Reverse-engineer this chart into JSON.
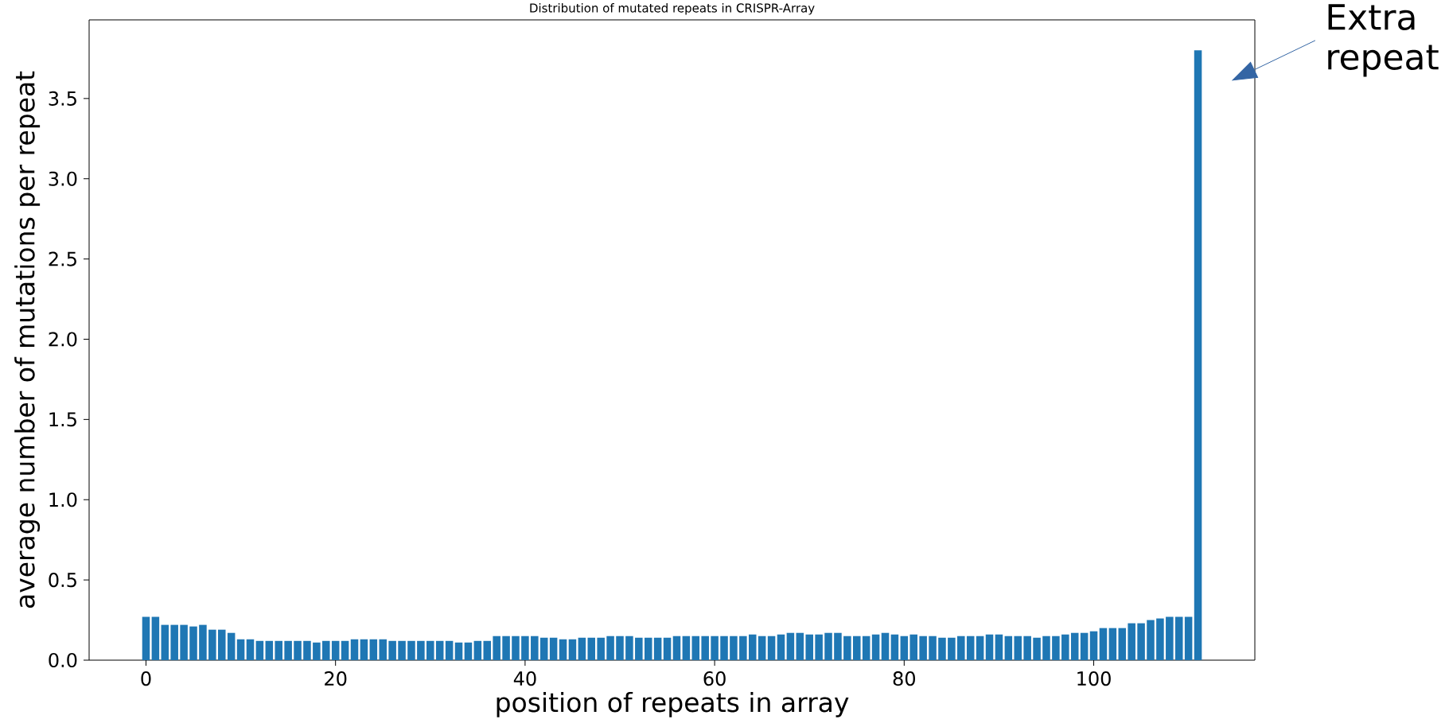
{
  "chart_data": {
    "type": "bar",
    "title": "Distribution of mutated repeats in CRISPR-Array",
    "xlabel": "position of repeats in array",
    "ylabel": "average number of mutations per repeat",
    "x": [
      0,
      1,
      2,
      3,
      4,
      5,
      6,
      7,
      8,
      9,
      10,
      11,
      12,
      13,
      14,
      15,
      16,
      17,
      18,
      19,
      20,
      21,
      22,
      23,
      24,
      25,
      26,
      27,
      28,
      29,
      30,
      31,
      32,
      33,
      34,
      35,
      36,
      37,
      38,
      39,
      40,
      41,
      42,
      43,
      44,
      45,
      46,
      47,
      48,
      49,
      50,
      51,
      52,
      53,
      54,
      55,
      56,
      57,
      58,
      59,
      60,
      61,
      62,
      63,
      64,
      65,
      66,
      67,
      68,
      69,
      70,
      71,
      72,
      73,
      74,
      75,
      76,
      77,
      78,
      79,
      80,
      81,
      82,
      83,
      84,
      85,
      86,
      87,
      88,
      89,
      90,
      91,
      92,
      93,
      94,
      95,
      96,
      97,
      98,
      99,
      100,
      101,
      102,
      103,
      104,
      105,
      106,
      107,
      108,
      109,
      110,
      111
    ],
    "values": [
      0.27,
      0.27,
      0.22,
      0.22,
      0.22,
      0.21,
      0.22,
      0.19,
      0.19,
      0.17,
      0.13,
      0.13,
      0.12,
      0.12,
      0.12,
      0.12,
      0.12,
      0.12,
      0.11,
      0.12,
      0.12,
      0.12,
      0.13,
      0.13,
      0.13,
      0.13,
      0.12,
      0.12,
      0.12,
      0.12,
      0.12,
      0.12,
      0.12,
      0.11,
      0.11,
      0.12,
      0.12,
      0.15,
      0.15,
      0.15,
      0.15,
      0.15,
      0.14,
      0.14,
      0.13,
      0.13,
      0.14,
      0.14,
      0.14,
      0.15,
      0.15,
      0.15,
      0.14,
      0.14,
      0.14,
      0.14,
      0.15,
      0.15,
      0.15,
      0.15,
      0.15,
      0.15,
      0.15,
      0.15,
      0.16,
      0.15,
      0.15,
      0.16,
      0.17,
      0.17,
      0.16,
      0.16,
      0.17,
      0.17,
      0.15,
      0.15,
      0.15,
      0.16,
      0.17,
      0.16,
      0.15,
      0.16,
      0.15,
      0.15,
      0.14,
      0.14,
      0.15,
      0.15,
      0.15,
      0.16,
      0.16,
      0.15,
      0.15,
      0.15,
      0.14,
      0.15,
      0.15,
      0.16,
      0.17,
      0.17,
      0.18,
      0.2,
      0.2,
      0.2,
      0.23,
      0.23,
      0.25,
      0.26,
      0.27,
      0.27,
      0.27,
      3.8
    ],
    "color": "#1f77b4",
    "xlim": [
      -6,
      117
    ],
    "ylim": [
      0,
      3.99
    ],
    "xticks": [
      0,
      20,
      40,
      60,
      80,
      100
    ],
    "yticks": [
      {
        "value": 0,
        "label": "0.0"
      },
      0.5,
      {
        "value": 1,
        "label": "1.0"
      },
      1.5,
      {
        "value": 2,
        "label": "2.0"
      },
      2.5,
      {
        "value": 3,
        "label": "3.0"
      },
      3.5
    ],
    "annotations": [
      "Extra repeat"
    ]
  }
}
